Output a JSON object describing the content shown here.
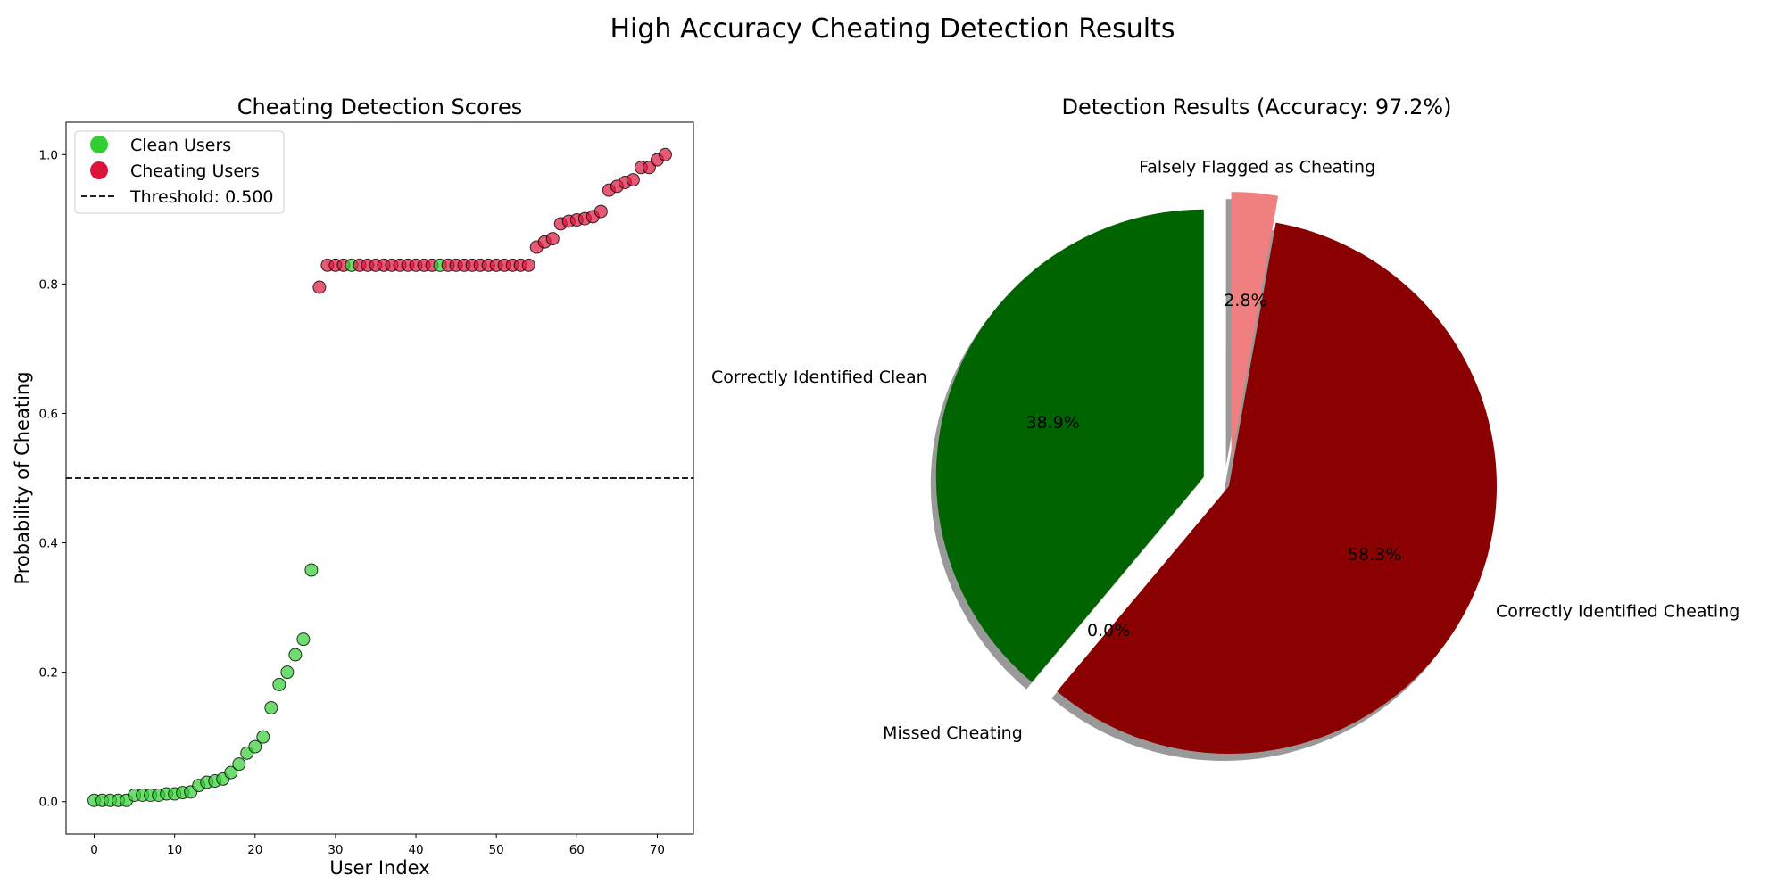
{
  "figure": {
    "title": "High Accuracy Cheating Detection Results"
  },
  "chart_data": [
    {
      "type": "scatter",
      "title": "Cheating Detection Scores",
      "xlabel": "User Index",
      "ylabel": "Probability of Cheating",
      "xlim": [
        -3.5,
        74.5
      ],
      "ylim": [
        -0.05,
        1.05
      ],
      "xticks": [
        0,
        10,
        20,
        30,
        40,
        50,
        60,
        70
      ],
      "yticks": [
        0.0,
        0.2,
        0.4,
        0.6,
        0.8,
        1.0
      ],
      "grid": false,
      "legend_position": "top-left",
      "threshold": {
        "value": 0.5,
        "label": "Threshold: 0.500",
        "color": "#000000",
        "style": "dashed"
      },
      "series": [
        {
          "name": "Clean Users",
          "color": "#32cd32",
          "points": [
            [
              0,
              0.002
            ],
            [
              1,
              0.002
            ],
            [
              2,
              0.002
            ],
            [
              3,
              0.002
            ],
            [
              4,
              0.002
            ],
            [
              5,
              0.01
            ],
            [
              6,
              0.01
            ],
            [
              7,
              0.01
            ],
            [
              8,
              0.01
            ],
            [
              9,
              0.012
            ],
            [
              10,
              0.012
            ],
            [
              11,
              0.014
            ],
            [
              12,
              0.015
            ],
            [
              13,
              0.025
            ],
            [
              14,
              0.03
            ],
            [
              15,
              0.032
            ],
            [
              16,
              0.035
            ],
            [
              17,
              0.045
            ],
            [
              18,
              0.058
            ],
            [
              19,
              0.075
            ],
            [
              20,
              0.085
            ],
            [
              21,
              0.1
            ],
            [
              22,
              0.145
            ],
            [
              23,
              0.181
            ],
            [
              24,
              0.2
            ],
            [
              25,
              0.227
            ],
            [
              26,
              0.251
            ],
            [
              27,
              0.358
            ],
            [
              32,
              0.829
            ],
            [
              43,
              0.829
            ]
          ]
        },
        {
          "name": "Cheating Users",
          "color": "#dc143c",
          "points": [
            [
              28,
              0.795
            ],
            [
              29,
              0.829
            ],
            [
              30,
              0.829
            ],
            [
              31,
              0.829
            ],
            [
              33,
              0.829
            ],
            [
              34,
              0.829
            ],
            [
              35,
              0.829
            ],
            [
              36,
              0.829
            ],
            [
              37,
              0.829
            ],
            [
              38,
              0.829
            ],
            [
              39,
              0.829
            ],
            [
              40,
              0.829
            ],
            [
              41,
              0.829
            ],
            [
              42,
              0.829
            ],
            [
              44,
              0.829
            ],
            [
              45,
              0.829
            ],
            [
              46,
              0.829
            ],
            [
              47,
              0.829
            ],
            [
              48,
              0.829
            ],
            [
              49,
              0.829
            ],
            [
              50,
              0.829
            ],
            [
              51,
              0.829
            ],
            [
              52,
              0.829
            ],
            [
              53,
              0.829
            ],
            [
              54,
              0.829
            ],
            [
              55,
              0.857
            ],
            [
              56,
              0.865
            ],
            [
              57,
              0.87
            ],
            [
              58,
              0.893
            ],
            [
              59,
              0.897
            ],
            [
              60,
              0.899
            ],
            [
              61,
              0.901
            ],
            [
              62,
              0.904
            ],
            [
              63,
              0.912
            ],
            [
              64,
              0.945
            ],
            [
              65,
              0.951
            ],
            [
              66,
              0.957
            ],
            [
              67,
              0.961
            ],
            [
              68,
              0.98
            ],
            [
              69,
              0.98
            ],
            [
              70,
              0.992
            ],
            [
              71,
              1.0
            ]
          ]
        }
      ]
    },
    {
      "type": "pie",
      "title": "Detection Results (Accuracy: 97.2%)",
      "start_angle_deg": 90,
      "direction": "counterclockwise",
      "shadow": true,
      "slices": [
        {
          "label": "Correctly Identified Clean",
          "value": 38.9,
          "pct_label": "38.9%",
          "color": "#006400",
          "explode": 0.1
        },
        {
          "label": "Missed Cheating",
          "value": 0.0,
          "pct_label": "0.0%",
          "color": "#ff0000",
          "explode": 0.1
        },
        {
          "label": "Correctly Identified Cheating",
          "value": 58.3,
          "pct_label": "58.3%",
          "color": "#8b0000",
          "explode": 0.0
        },
        {
          "label": "Falsely Flagged as Cheating",
          "value": 2.8,
          "pct_label": "2.8%",
          "color": "#f08080",
          "explode": 0.1
        }
      ]
    }
  ]
}
